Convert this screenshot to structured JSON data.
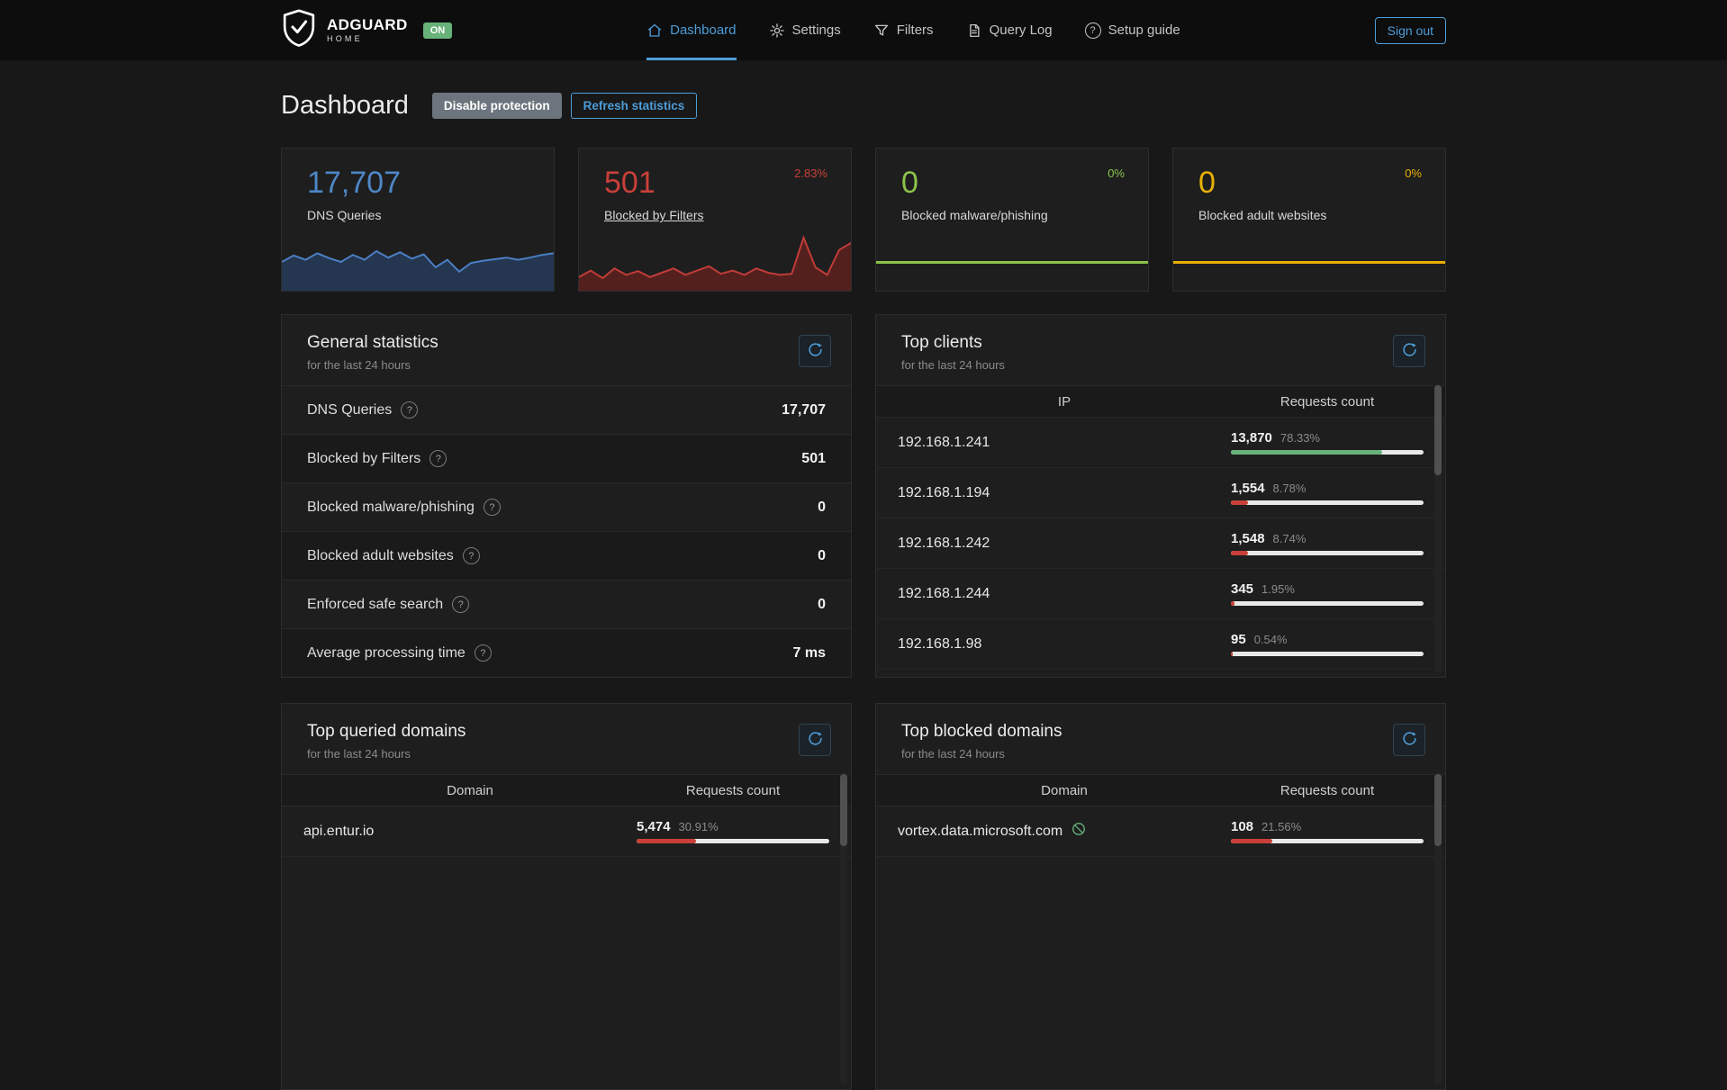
{
  "icons": {
    "help": "?"
  },
  "colors": {
    "accent_blue": "#4d9dd9",
    "dns_blue": "#4f86c6",
    "blocked_red": "#c94039",
    "malware_green": "#8bc34a",
    "adult_yellow": "#e8b004",
    "client_green": "#67b279",
    "bar_track": "#e8e8e8"
  },
  "navbar": {
    "brand": {
      "name": "ADGUARD",
      "sub": "HOME",
      "status": "ON"
    },
    "items": [
      {
        "label": "Dashboard"
      },
      {
        "label": "Settings"
      },
      {
        "label": "Filters"
      },
      {
        "label": "Query Log"
      },
      {
        "label": "Setup guide"
      }
    ],
    "signout": "Sign out"
  },
  "page": {
    "title": "Dashboard",
    "disable_protection": "Disable protection",
    "refresh_statistics": "Refresh statistics"
  },
  "stat_cards": [
    {
      "value": "17,707",
      "label": "DNS Queries",
      "color": "#4f86c6"
    },
    {
      "value": "501",
      "label": "Blocked by Filters",
      "percent": "2.83%",
      "color": "#c94039"
    },
    {
      "value": "0",
      "label": "Blocked malware/phishing",
      "percent": "0%",
      "color": "#8bc34a"
    },
    {
      "value": "0",
      "label": "Blocked adult websites",
      "percent": "0%",
      "color": "#e8b004"
    }
  ],
  "sparklines": {
    "dns": {
      "stroke": "#4b7fc4",
      "fill": "rgba(43,78,130,0.5)",
      "values": [
        0.5,
        0.62,
        0.54,
        0.66,
        0.57,
        0.5,
        0.63,
        0.54,
        0.7,
        0.58,
        0.68,
        0.56,
        0.64,
        0.4,
        0.54,
        0.32,
        0.48,
        0.52,
        0.55,
        0.58,
        0.54,
        0.58,
        0.63,
        0.66
      ]
    },
    "blocked": {
      "stroke": "#c03c38",
      "fill": "rgba(150,35,32,0.45)",
      "values": [
        0.22,
        0.34,
        0.2,
        0.38,
        0.26,
        0.33,
        0.22,
        0.3,
        0.38,
        0.26,
        0.34,
        0.42,
        0.28,
        0.34,
        0.26,
        0.38,
        0.3,
        0.26,
        0.28,
        0.95,
        0.4,
        0.26,
        0.72,
        0.85
      ]
    },
    "malware": {
      "stroke": "#8bc34a"
    },
    "adult": {
      "stroke": "#e8b004"
    }
  },
  "general_stats": {
    "title": "General statistics",
    "subtitle": "for the last 24 hours",
    "rows": [
      {
        "label": "DNS Queries",
        "value": "17,707"
      },
      {
        "label": "Blocked by Filters",
        "value": "501"
      },
      {
        "label": "Blocked malware/phishing",
        "value": "0"
      },
      {
        "label": "Blocked adult websites",
        "value": "0"
      },
      {
        "label": "Enforced safe search",
        "value": "0"
      },
      {
        "label": "Average processing time",
        "value": "7 ms"
      }
    ]
  },
  "top_clients": {
    "title": "Top clients",
    "subtitle": "for the last 24 hours",
    "columns": {
      "main": "IP",
      "requests": "Requests count"
    },
    "rows": [
      {
        "ip": "192.168.1.241",
        "count": "13,870",
        "percent_label": "78.33%",
        "percent": 78.33,
        "bar_color": "#67b279"
      },
      {
        "ip": "192.168.1.194",
        "count": "1,554",
        "percent_label": "8.78%",
        "percent": 8.78,
        "bar_color": "#c94039"
      },
      {
        "ip": "192.168.1.242",
        "count": "1,548",
        "percent_label": "8.74%",
        "percent": 8.74,
        "bar_color": "#c94039"
      },
      {
        "ip": "192.168.1.244",
        "count": "345",
        "percent_label": "1.95%",
        "percent": 1.95,
        "bar_color": "#c94039"
      },
      {
        "ip": "192.168.1.98",
        "count": "95",
        "percent_label": "0.54%",
        "percent": 0.54,
        "bar_color": "#c94039"
      }
    ]
  },
  "top_queried": {
    "title": "Top queried domains",
    "subtitle": "for the last 24 hours",
    "columns": {
      "main": "Domain",
      "requests": "Requests count"
    },
    "rows": [
      {
        "domain": "api.entur.io",
        "count": "5,474",
        "percent_label": "30.91%",
        "percent": 30.91,
        "bar_color": "#c94039"
      }
    ]
  },
  "top_blocked": {
    "title": "Top blocked domains",
    "subtitle": "for the last 24 hours",
    "columns": {
      "main": "Domain",
      "requests": "Requests count"
    },
    "rows": [
      {
        "domain": "vortex.data.microsoft.com",
        "count": "108",
        "percent_label": "21.56%",
        "percent": 21.56,
        "bar_color": "#c94039"
      }
    ]
  }
}
